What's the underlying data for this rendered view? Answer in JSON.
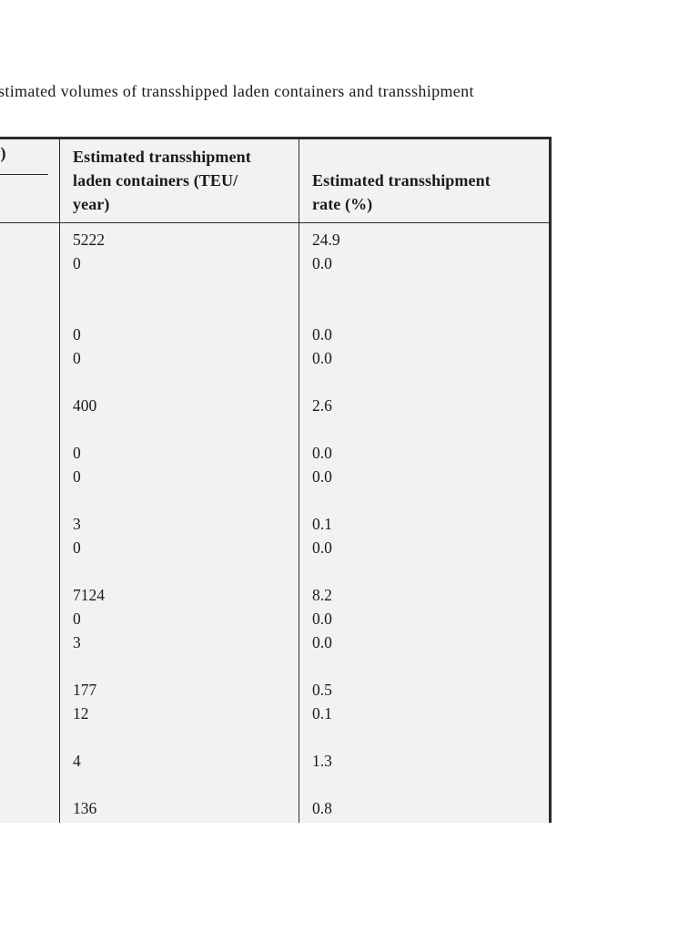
{
  "caption": {
    "text_fragment": "stimated volumes of transshipped laden containers and transshipment"
  },
  "table": {
    "cut_left_column": {
      "header_fragment": ")"
    },
    "columns": [
      {
        "header": "Estimated transshipment laden containers (TEU/year)",
        "header_lines": [
          "Estimated transshipment",
          "laden containers (TEU/",
          "year)"
        ]
      },
      {
        "header": "Estimated transshipment rate (%)",
        "header_lines": [
          "Estimated transshipment",
          "rate (%)"
        ]
      }
    ],
    "rows": [
      [
        "5222",
        "24.9"
      ],
      [
        "0",
        "0.0"
      ],
      [
        "",
        ""
      ],
      [
        "",
        ""
      ],
      [
        "0",
        "0.0"
      ],
      [
        "0",
        "0.0"
      ],
      [
        "",
        ""
      ],
      [
        "400",
        "2.6"
      ],
      [
        "",
        ""
      ],
      [
        "0",
        "0.0"
      ],
      [
        "0",
        "0.0"
      ],
      [
        "",
        ""
      ],
      [
        "3",
        "0.1"
      ],
      [
        "0",
        "0.0"
      ],
      [
        "",
        ""
      ],
      [
        "7124",
        "8.2"
      ],
      [
        "0",
        "0.0"
      ],
      [
        "3",
        "0.0"
      ],
      [
        "",
        ""
      ],
      [
        "177",
        "0.5"
      ],
      [
        "12",
        "0.1"
      ],
      [
        "",
        ""
      ],
      [
        "4",
        "1.3"
      ],
      [
        "",
        ""
      ],
      [
        "136",
        "0.8"
      ]
    ]
  },
  "colors": {
    "page_background": "#ffffff",
    "table_background": "#f2f2f2",
    "border": "#2b2b2b",
    "text": "#1a1a1a"
  }
}
